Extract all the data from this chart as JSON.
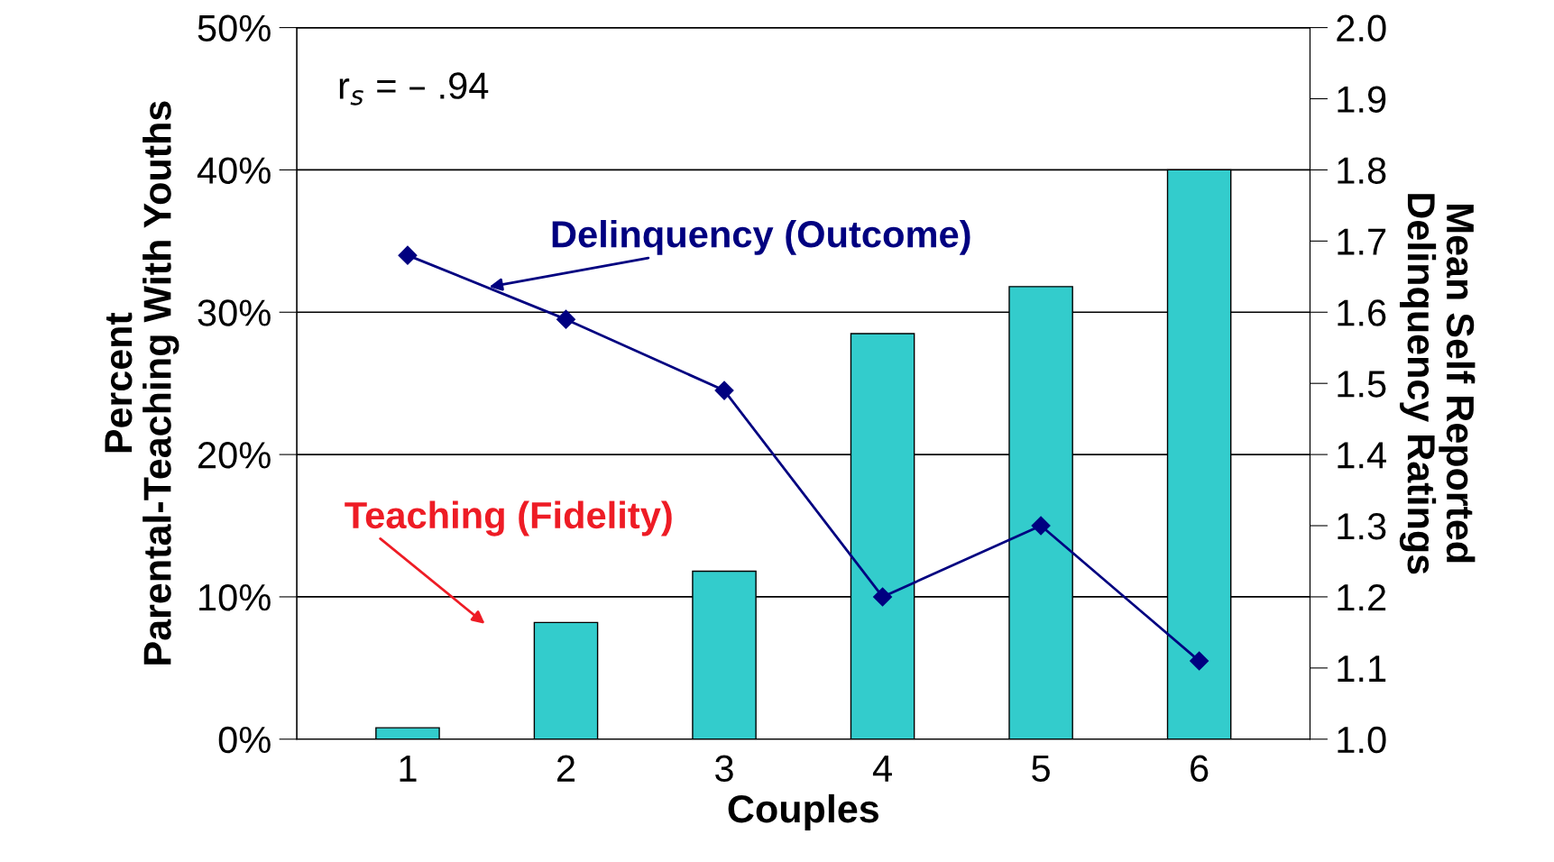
{
  "chart_data": {
    "type": "bar",
    "xlabel": "Couples",
    "ylabel": "Percent\nParental-Teaching With Youths",
    "y2label": "Mean Self Reported\nDelinquency Ratings",
    "categories": [
      "1",
      "2",
      "3",
      "4",
      "5",
      "6"
    ],
    "series": [
      {
        "name": "Teaching (Fidelity)",
        "color": "#33cccc",
        "values": [
          0.8,
          8.2,
          11.8,
          28.5,
          31.8,
          40
        ]
      },
      {
        "name": "Delinquency (Outcome)",
        "type": "line",
        "axis": "y2",
        "color": "#000080",
        "marker": "diamond",
        "line_style": "solid",
        "values": [
          1.68,
          1.59,
          1.49,
          1.2,
          1.3,
          1.11
        ]
      }
    ],
    "annotations": [
      "r$_{s}$ = – .94"
    ],
    "ylim": [
      0,
      50
    ],
    "yticks": [
      {
        "value": 0,
        "label": "0%"
      },
      {
        "value": 10,
        "label": "10%"
      },
      {
        "value": 20,
        "label": "20%"
      },
      {
        "value": 30,
        "label": "30%"
      },
      {
        "value": 40,
        "label": "40%"
      },
      {
        "value": 50,
        "label": "50%"
      }
    ],
    "y2lim": [
      1.0,
      2.0
    ],
    "y2ticks": [
      {
        "value": 1.0,
        "label": "1.0"
      },
      1.1,
      1.2,
      1.3,
      1.4,
      1.5,
      1.6,
      1.7,
      1.8,
      1.9,
      {
        "value": 2.0,
        "label": "2.0"
      }
    ],
    "grid": "y",
    "legend": false
  }
}
